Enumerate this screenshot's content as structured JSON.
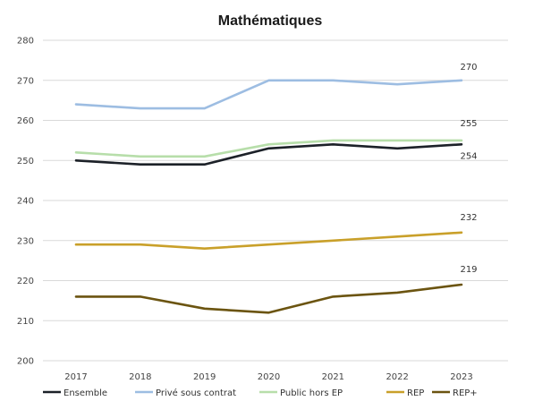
{
  "chart_data": {
    "type": "line",
    "title": "Mathématiques",
    "xlabel": "",
    "ylabel": "",
    "x": [
      "2017",
      "2018",
      "2019",
      "2020",
      "2021",
      "2022",
      "2023"
    ],
    "ylim": [
      200,
      280
    ],
    "yticks": [
      200,
      210,
      220,
      230,
      240,
      250,
      260,
      270,
      280
    ],
    "grid": "horizontal",
    "legend_position": "bottom",
    "series": [
      {
        "name": "Ensemble",
        "color": "#1c2128",
        "values": [
          250,
          249,
          249,
          253,
          254,
          253,
          254
        ],
        "end_label": "254"
      },
      {
        "name": "Privé sous contrat",
        "color": "#9dbde2",
        "values": [
          264,
          263,
          263,
          270,
          270,
          269,
          270
        ],
        "end_label": "270"
      },
      {
        "name": "Public hors EP",
        "color": "#b7deaa",
        "values": [
          252,
          251,
          251,
          254,
          255,
          255,
          255
        ],
        "end_label": "255"
      },
      {
        "name": "REP",
        "color": "#c9a02a",
        "values": [
          229,
          229,
          228,
          229,
          230,
          231,
          232
        ],
        "end_label": "232"
      },
      {
        "name": "REP+",
        "color": "#6b5410",
        "values": [
          216,
          216,
          213,
          212,
          216,
          217,
          219
        ],
        "end_label": "219"
      }
    ]
  }
}
